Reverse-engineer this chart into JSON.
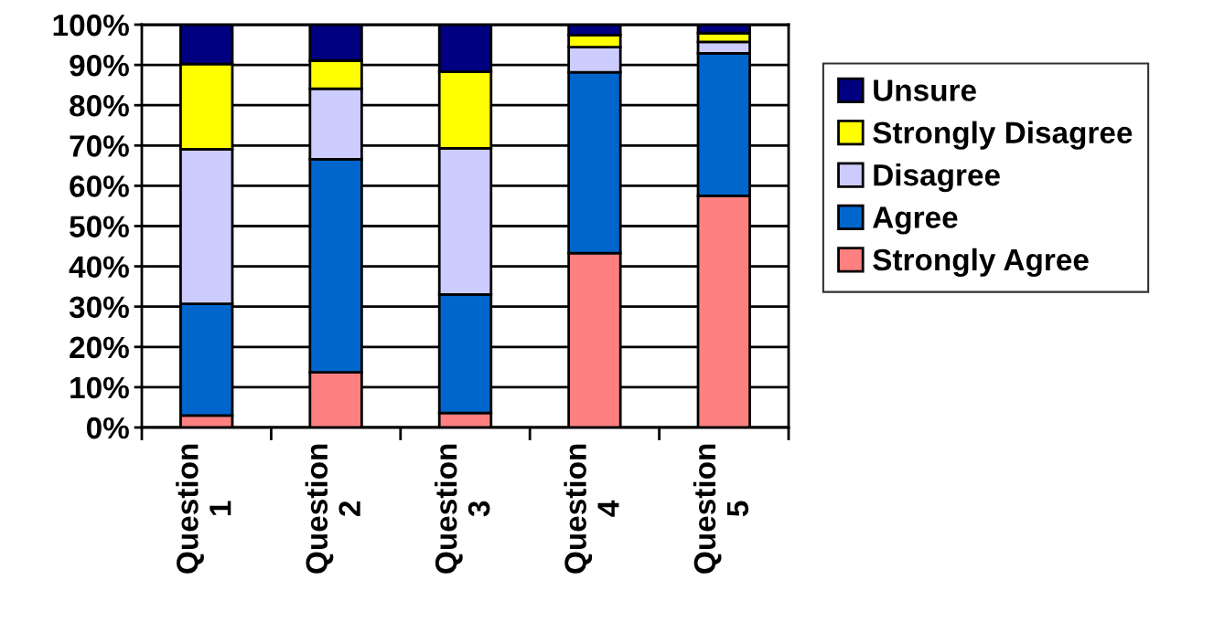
{
  "chart_data": {
    "type": "bar",
    "stacked": true,
    "categories": [
      "Question\n1",
      "Question\n2",
      "Question\n3",
      "Question\n4",
      "Question\n5"
    ],
    "series": [
      {
        "name": "Strongly Agree",
        "color": "#ff8080",
        "values": [
          3.0,
          13.7,
          3.6,
          43.3,
          57.5
        ]
      },
      {
        "name": "Agree",
        "color": "#0066cc",
        "values": [
          27.7,
          52.9,
          29.4,
          44.9,
          35.4
        ]
      },
      {
        "name": "Disagree",
        "color": "#ccccff",
        "values": [
          38.4,
          17.5,
          36.3,
          6.2,
          2.8
        ]
      },
      {
        "name": "Strongly Disagree",
        "color": "#ffff00",
        "values": [
          21.1,
          7.0,
          19.0,
          3.0,
          2.2
        ]
      },
      {
        "name": "Unsure",
        "color": "#000080",
        "values": [
          9.8,
          8.9,
          11.7,
          2.6,
          2.1
        ]
      }
    ],
    "ylim": [
      0,
      100
    ],
    "yticks": [
      {
        "value": 0,
        "label": "0%"
      },
      {
        "value": 10,
        "label": "10%"
      },
      {
        "value": 20,
        "label": "20%"
      },
      {
        "value": 30,
        "label": "30%"
      },
      {
        "value": 40,
        "label": "40%"
      },
      {
        "value": 50,
        "label": "50%"
      },
      {
        "value": 60,
        "label": "60%"
      },
      {
        "value": 70,
        "label": "70%"
      },
      {
        "value": 80,
        "label": "80%"
      },
      {
        "value": 90,
        "label": "90%"
      },
      {
        "value": 100,
        "label": "100%"
      }
    ],
    "grid": "y",
    "legend": "right"
  }
}
